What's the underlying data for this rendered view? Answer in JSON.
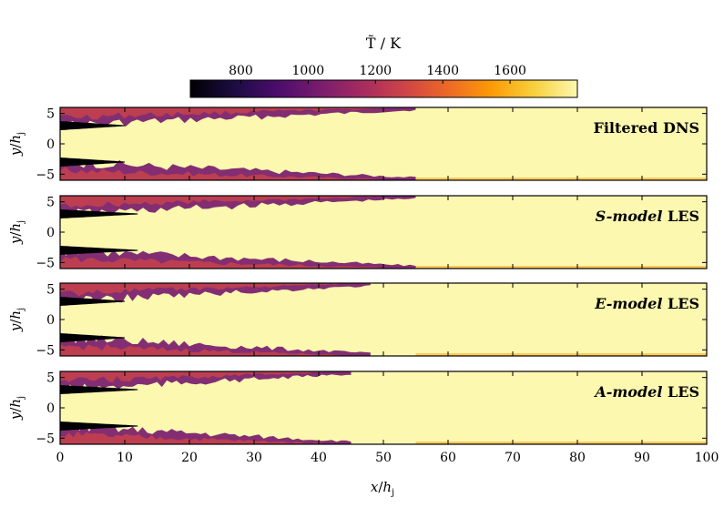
{
  "colorbar": {
    "title": "T̃ / K",
    "range": [
      650,
      1800
    ],
    "tick_values": [
      800,
      1000,
      1200,
      1400,
      1600
    ],
    "tick_labels": [
      "800",
      "1000",
      "1200",
      "1400",
      "1600"
    ],
    "colormap": "inferno",
    "stops": [
      "#000004",
      "#1b0c41",
      "#4a0c6b",
      "#781c6d",
      "#a52c60",
      "#cf4446",
      "#ed6925",
      "#fb9b06",
      "#f7d13d",
      "#fcf8b0"
    ]
  },
  "chart_data": [
    {
      "type": "heatmap",
      "panel_label": {
        "prefix": "",
        "italic": "",
        "suffix": "Filtered DNS"
      },
      "xlim": [
        0,
        100
      ],
      "ylim": [
        -6,
        6
      ],
      "ylabel": "y/hj",
      "yticks": [
        5,
        0,
        -5
      ],
      "field": "T̃",
      "cold_jet_centerlines_y": [
        3,
        -3
      ],
      "cold_core_end_x": 10,
      "mixing_layer_end_x": 55
    },
    {
      "type": "heatmap",
      "panel_label": {
        "prefix": "",
        "italic": "S-model",
        "suffix": " LES"
      },
      "xlim": [
        0,
        100
      ],
      "ylim": [
        -6,
        6
      ],
      "ylabel": "y/hj",
      "yticks": [
        5,
        0,
        -5
      ],
      "field": "T̃",
      "cold_jet_centerlines_y": [
        3,
        -3
      ],
      "cold_core_end_x": 12,
      "mixing_layer_end_x": 55
    },
    {
      "type": "heatmap",
      "panel_label": {
        "prefix": "",
        "italic": "E-model",
        "suffix": " LES"
      },
      "xlim": [
        0,
        100
      ],
      "ylim": [
        -6,
        6
      ],
      "ylabel": "y/hj",
      "yticks": [
        5,
        0,
        -5
      ],
      "field": "T̃",
      "cold_jet_centerlines_y": [
        3,
        -3
      ],
      "cold_core_end_x": 10,
      "mixing_layer_end_x": 48
    },
    {
      "type": "heatmap",
      "panel_label": {
        "prefix": "",
        "italic": "A-model",
        "suffix": " LES"
      },
      "xlim": [
        0,
        100
      ],
      "ylim": [
        -6,
        6
      ],
      "ylabel": "y/hj",
      "yticks": [
        5,
        0,
        -5
      ],
      "xlabel": "x/hj",
      "xticks": [
        0,
        10,
        20,
        30,
        40,
        50,
        60,
        70,
        80,
        90,
        100
      ],
      "field": "T̃",
      "cold_jet_centerlines_y": [
        3,
        -3
      ],
      "cold_core_end_x": 12,
      "mixing_layer_end_x": 45
    }
  ]
}
